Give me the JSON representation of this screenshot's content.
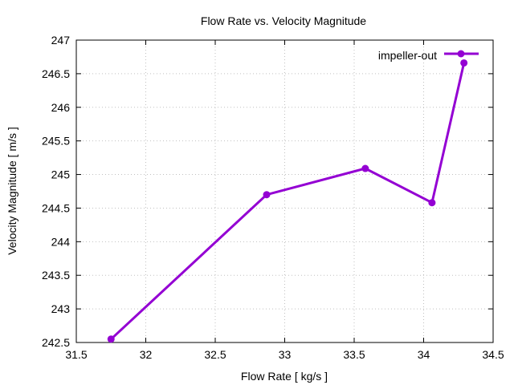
{
  "chart_data": {
    "type": "line",
    "title": "Flow Rate vs. Velocity Magnitude",
    "xlabel": "Flow Rate [ kg/s ]",
    "ylabel": "Velocity Magnitude [ m/s ]",
    "xlim": [
      31.5,
      34.5
    ],
    "ylim": [
      242.5,
      247
    ],
    "xticks": [
      "31.5",
      "32",
      "32.5",
      "33",
      "33.5",
      "34",
      "34.5"
    ],
    "yticks": [
      "242.5",
      "243",
      "243.5",
      "244",
      "244.5",
      "245",
      "245.5",
      "246",
      "246.5",
      "247"
    ],
    "grid": true,
    "legend_position": "top-right",
    "series": [
      {
        "name": "impeller-out",
        "color": "#9400d3",
        "x": [
          31.75,
          32.87,
          33.58,
          34.06,
          34.29
        ],
        "y": [
          242.55,
          244.7,
          245.09,
          244.58,
          246.66
        ]
      }
    ]
  }
}
